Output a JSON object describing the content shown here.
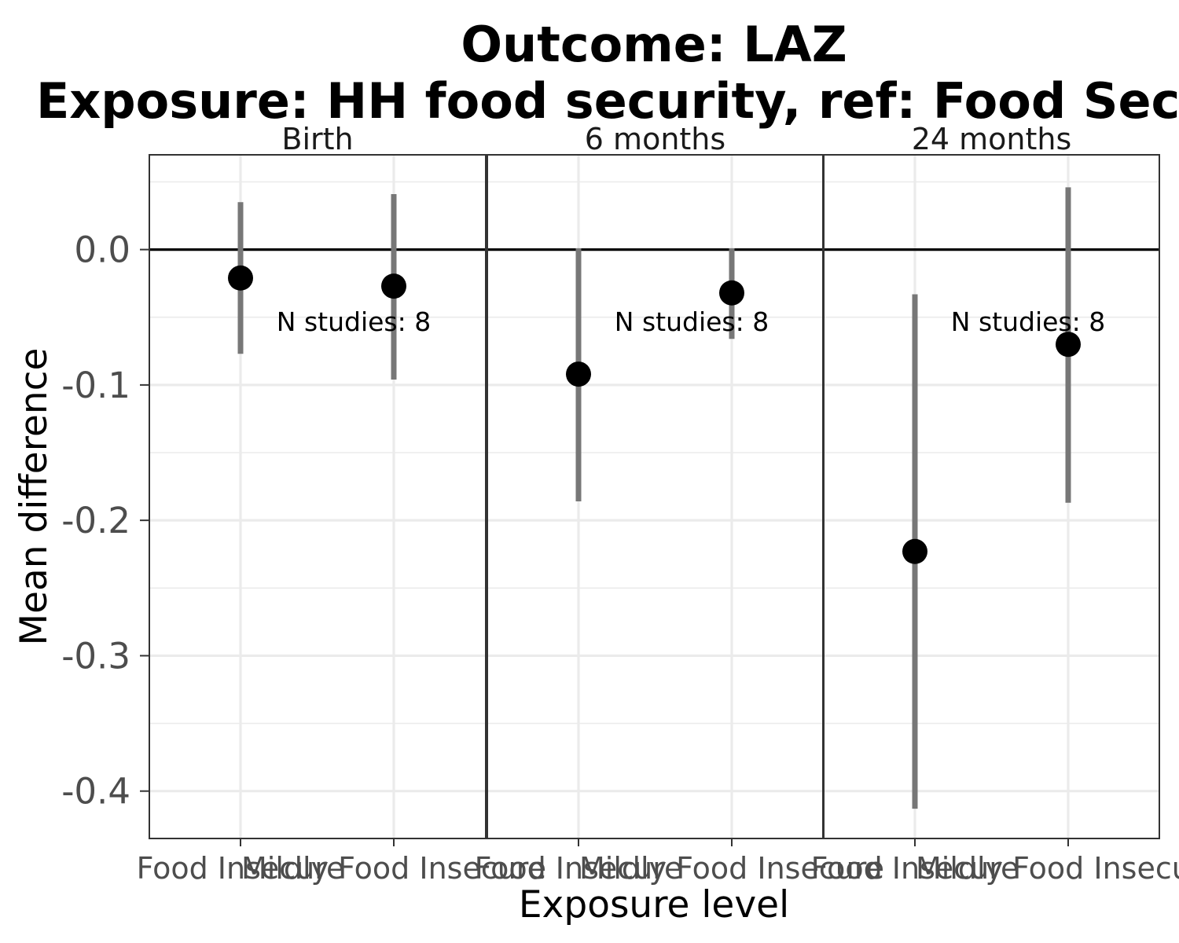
{
  "chart_data": {
    "type": "scatter",
    "title_line1": "Outcome: LAZ",
    "title_line2": "Exposure: HH food security, ref: Food Secure",
    "xlabel": "Exposure level",
    "ylabel": "Mean difference",
    "ylim": [
      -0.435,
      0.07
    ],
    "yticks": [
      0.0,
      -0.1,
      -0.2,
      -0.3,
      -0.4
    ],
    "ytick_labels": [
      "0.0",
      "-0.1",
      "-0.2",
      "-0.3",
      "-0.4"
    ],
    "grid": true,
    "reference_line_y": 0,
    "categories": [
      "Food Insecure",
      "Mildly Food Insecure"
    ],
    "panels": [
      {
        "label": "Birth",
        "annotation": "N studies: 8",
        "points": [
          {
            "category": "Food Insecure",
            "estimate": -0.021,
            "lower": -0.077,
            "upper": 0.035
          },
          {
            "category": "Mildly Food Insecure",
            "estimate": -0.027,
            "lower": -0.096,
            "upper": 0.041
          }
        ]
      },
      {
        "label": "6 months",
        "annotation": "N studies: 8",
        "points": [
          {
            "category": "Food Insecure",
            "estimate": -0.092,
            "lower": -0.186,
            "upper": 0.001
          },
          {
            "category": "Mildly Food Insecure",
            "estimate": -0.032,
            "lower": -0.066,
            "upper": 0.001
          }
        ]
      },
      {
        "label": "24 months",
        "annotation": "N studies: 8",
        "points": [
          {
            "category": "Food Insecure",
            "estimate": -0.223,
            "lower": -0.413,
            "upper": -0.033
          },
          {
            "category": "Mildly Food Insecure",
            "estimate": -0.07,
            "lower": -0.187,
            "upper": 0.046
          }
        ]
      }
    ]
  }
}
